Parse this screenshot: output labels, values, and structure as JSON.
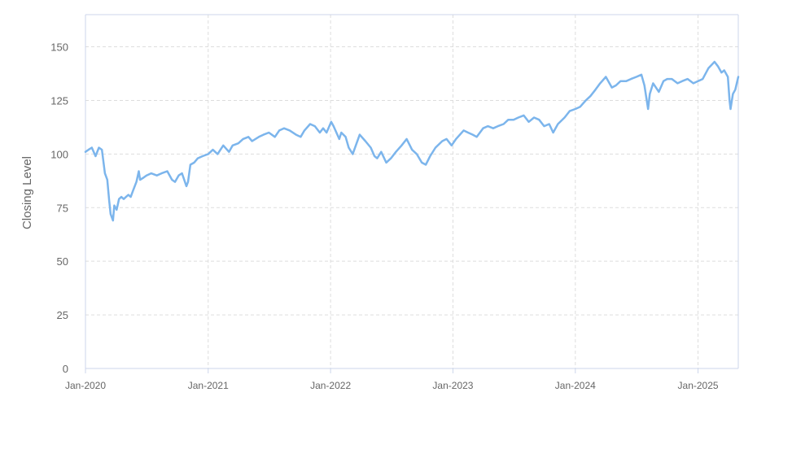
{
  "chart_data": {
    "type": "line",
    "title": "",
    "xlabel": "",
    "ylabel": "Closing Level",
    "ylim": [
      0,
      165
    ],
    "xlim": [
      "2020-01-01",
      "2025-05-01"
    ],
    "yticks": [
      0,
      25,
      50,
      75,
      100,
      125,
      150
    ],
    "ytick_labels": [
      "0",
      "25",
      "50",
      "75",
      "100",
      "125",
      "150"
    ],
    "xticks": [
      "2020-01-01",
      "2021-01-01",
      "2022-01-01",
      "2023-01-01",
      "2024-01-01",
      "2025-01-01"
    ],
    "xtick_labels": [
      "Jan-2020",
      "Jan-2021",
      "Jan-2022",
      "Jan-2023",
      "Jan-2024",
      "Jan-2025"
    ],
    "grid": true,
    "legend": "none",
    "series": [
      {
        "color": "#7cb5ec",
        "points": [
          [
            "2020-01-01",
            101
          ],
          [
            "2020-01-10",
            102
          ],
          [
            "2020-01-20",
            103
          ],
          [
            "2020-01-31",
            99
          ],
          [
            "2020-02-10",
            103
          ],
          [
            "2020-02-19",
            102
          ],
          [
            "2020-02-28",
            91
          ],
          [
            "2020-03-06",
            88
          ],
          [
            "2020-03-12",
            78
          ],
          [
            "2020-03-16",
            72
          ],
          [
            "2020-03-23",
            69
          ],
          [
            "2020-03-27",
            76
          ],
          [
            "2020-04-03",
            74
          ],
          [
            "2020-04-10",
            79
          ],
          [
            "2020-04-17",
            80
          ],
          [
            "2020-04-24",
            79
          ],
          [
            "2020-05-01",
            80
          ],
          [
            "2020-05-08",
            81
          ],
          [
            "2020-05-15",
            80
          ],
          [
            "2020-05-22",
            83
          ],
          [
            "2020-06-01",
            87
          ],
          [
            "2020-06-08",
            92
          ],
          [
            "2020-06-12",
            88
          ],
          [
            "2020-06-22",
            89
          ],
          [
            "2020-07-01",
            90
          ],
          [
            "2020-07-15",
            91
          ],
          [
            "2020-08-01",
            90
          ],
          [
            "2020-08-15",
            91
          ],
          [
            "2020-09-01",
            92
          ],
          [
            "2020-09-15",
            88
          ],
          [
            "2020-09-24",
            87
          ],
          [
            "2020-10-05",
            90
          ],
          [
            "2020-10-15",
            91
          ],
          [
            "2020-10-28",
            85
          ],
          [
            "2020-11-02",
            87
          ],
          [
            "2020-11-09",
            95
          ],
          [
            "2020-11-20",
            96
          ],
          [
            "2020-12-01",
            98
          ],
          [
            "2020-12-15",
            99
          ],
          [
            "2021-01-01",
            100
          ],
          [
            "2021-01-15",
            102
          ],
          [
            "2021-01-29",
            100
          ],
          [
            "2021-02-15",
            104
          ],
          [
            "2021-03-04",
            101
          ],
          [
            "2021-03-15",
            104
          ],
          [
            "2021-04-01",
            105
          ],
          [
            "2021-04-15",
            107
          ],
          [
            "2021-05-01",
            108
          ],
          [
            "2021-05-12",
            106
          ],
          [
            "2021-06-01",
            108
          ],
          [
            "2021-06-15",
            109
          ],
          [
            "2021-07-01",
            110
          ],
          [
            "2021-07-19",
            108
          ],
          [
            "2021-08-01",
            111
          ],
          [
            "2021-08-15",
            112
          ],
          [
            "2021-09-01",
            111
          ],
          [
            "2021-09-20",
            109
          ],
          [
            "2021-10-04",
            108
          ],
          [
            "2021-10-15",
            111
          ],
          [
            "2021-11-01",
            114
          ],
          [
            "2021-11-15",
            113
          ],
          [
            "2021-11-30",
            110
          ],
          [
            "2021-12-10",
            112
          ],
          [
            "2021-12-20",
            110
          ],
          [
            "2022-01-03",
            115
          ],
          [
            "2022-01-10",
            113
          ],
          [
            "2022-01-27",
            107
          ],
          [
            "2022-02-02",
            110
          ],
          [
            "2022-02-15",
            108
          ],
          [
            "2022-02-24",
            103
          ],
          [
            "2022-03-08",
            100
          ],
          [
            "2022-03-29",
            109
          ],
          [
            "2022-04-15",
            106
          ],
          [
            "2022-05-01",
            103
          ],
          [
            "2022-05-12",
            99
          ],
          [
            "2022-05-20",
            98
          ],
          [
            "2022-06-01",
            101
          ],
          [
            "2022-06-16",
            96
          ],
          [
            "2022-06-30",
            98
          ],
          [
            "2022-07-15",
            101
          ],
          [
            "2022-08-01",
            104
          ],
          [
            "2022-08-16",
            107
          ],
          [
            "2022-09-01",
            102
          ],
          [
            "2022-09-15",
            100
          ],
          [
            "2022-09-30",
            96
          ],
          [
            "2022-10-12",
            95
          ],
          [
            "2022-10-25",
            99
          ],
          [
            "2022-11-10",
            103
          ],
          [
            "2022-11-30",
            106
          ],
          [
            "2022-12-13",
            107
          ],
          [
            "2022-12-28",
            104
          ],
          [
            "2023-01-10",
            107
          ],
          [
            "2023-02-02",
            111
          ],
          [
            "2023-02-15",
            110
          ],
          [
            "2023-03-01",
            109
          ],
          [
            "2023-03-13",
            108
          ],
          [
            "2023-04-01",
            112
          ],
          [
            "2023-04-15",
            113
          ],
          [
            "2023-05-01",
            112
          ],
          [
            "2023-05-15",
            113
          ],
          [
            "2023-06-01",
            114
          ],
          [
            "2023-06-15",
            116
          ],
          [
            "2023-07-01",
            116
          ],
          [
            "2023-07-15",
            117
          ],
          [
            "2023-07-31",
            118
          ],
          [
            "2023-08-15",
            115
          ],
          [
            "2023-08-31",
            117
          ],
          [
            "2023-09-15",
            116
          ],
          [
            "2023-09-30",
            113
          ],
          [
            "2023-10-15",
            114
          ],
          [
            "2023-10-27",
            110
          ],
          [
            "2023-11-10",
            114
          ],
          [
            "2023-11-30",
            117
          ],
          [
            "2023-12-15",
            120
          ],
          [
            "2024-01-01",
            121
          ],
          [
            "2024-01-15",
            122
          ],
          [
            "2024-02-01",
            125
          ],
          [
            "2024-02-15",
            127
          ],
          [
            "2024-03-01",
            130
          ],
          [
            "2024-03-15",
            133
          ],
          [
            "2024-04-01",
            136
          ],
          [
            "2024-04-19",
            131
          ],
          [
            "2024-05-01",
            132
          ],
          [
            "2024-05-15",
            134
          ],
          [
            "2024-06-01",
            134
          ],
          [
            "2024-06-15",
            135
          ],
          [
            "2024-07-01",
            136
          ],
          [
            "2024-07-16",
            137
          ],
          [
            "2024-07-25",
            132
          ],
          [
            "2024-08-05",
            121
          ],
          [
            "2024-08-10",
            128
          ],
          [
            "2024-08-20",
            133
          ],
          [
            "2024-09-06",
            129
          ],
          [
            "2024-09-20",
            134
          ],
          [
            "2024-10-01",
            135
          ],
          [
            "2024-10-15",
            135
          ],
          [
            "2024-11-01",
            133
          ],
          [
            "2024-11-15",
            134
          ],
          [
            "2024-12-01",
            135
          ],
          [
            "2024-12-18",
            133
          ],
          [
            "2025-01-01",
            134
          ],
          [
            "2025-01-15",
            135
          ],
          [
            "2025-02-01",
            140
          ],
          [
            "2025-02-19",
            143
          ],
          [
            "2025-03-01",
            141
          ],
          [
            "2025-03-12",
            138
          ],
          [
            "2025-03-20",
            139
          ],
          [
            "2025-03-31",
            136
          ],
          [
            "2025-04-05",
            125
          ],
          [
            "2025-04-08",
            121
          ],
          [
            "2025-04-15",
            128
          ],
          [
            "2025-04-22",
            130
          ],
          [
            "2025-05-01",
            136
          ]
        ]
      }
    ]
  },
  "colors": {
    "line": "#7cb5ec",
    "grid": "#dddddd",
    "axis": "#ccd6eb",
    "text": "#666666",
    "background": "#ffffff"
  }
}
